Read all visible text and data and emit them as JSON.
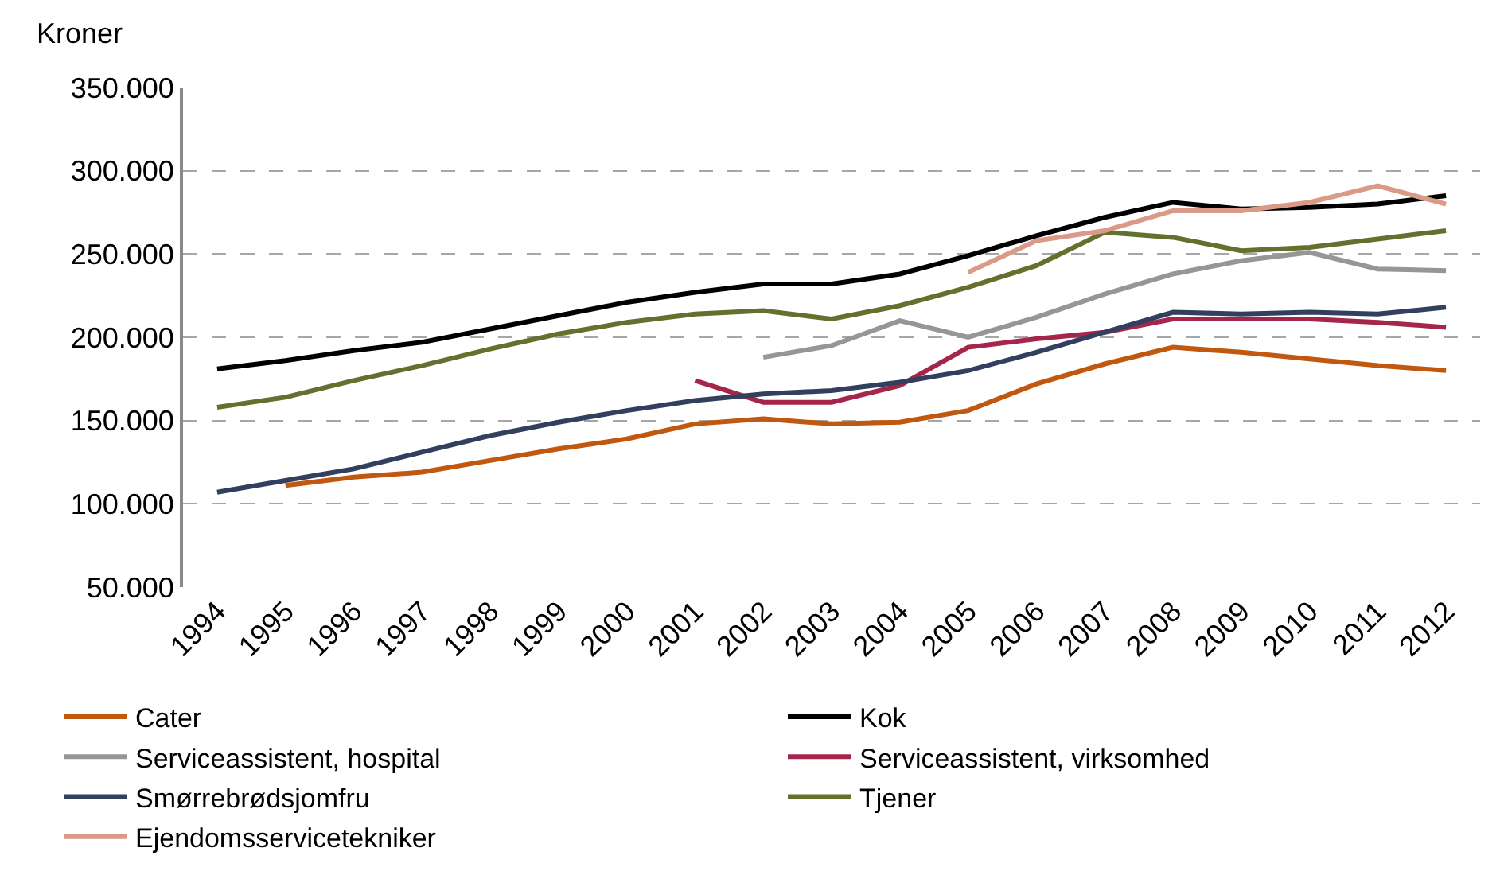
{
  "chart_data": {
    "type": "line",
    "ylabel": "Kroner",
    "categories": [
      "1994",
      "1995",
      "1996",
      "1997",
      "1998",
      "1999",
      "2000",
      "2001",
      "2002",
      "2003",
      "2004",
      "2005",
      "2006",
      "2007",
      "2008",
      "2009",
      "2010",
      "2011",
      "2012"
    ],
    "series": [
      {
        "name": "Cater",
        "color": "#c0580f",
        "values": [
          null,
          111000,
          116000,
          119000,
          126000,
          133000,
          139000,
          148000,
          151000,
          148000,
          149000,
          156000,
          172000,
          184000,
          194000,
          191000,
          187000,
          183000,
          180000
        ]
      },
      {
        "name": "Kok",
        "color": "#000000",
        "values": [
          181000,
          186000,
          192000,
          197000,
          205000,
          213000,
          221000,
          227000,
          232000,
          232000,
          238000,
          249000,
          261000,
          272000,
          281000,
          277000,
          278000,
          280000,
          285000
        ]
      },
      {
        "name": "Serviceassistent, hospital",
        "color": "#969696",
        "values": [
          null,
          null,
          null,
          null,
          null,
          null,
          null,
          null,
          188000,
          195000,
          210000,
          200000,
          212000,
          226000,
          238000,
          246000,
          251000,
          241000,
          240000
        ]
      },
      {
        "name": "Serviceassistent, virksomhed",
        "color": "#a5264a",
        "values": [
          null,
          null,
          null,
          null,
          null,
          null,
          null,
          174000,
          161000,
          161000,
          171000,
          194000,
          199000,
          203000,
          211000,
          211000,
          211000,
          209000,
          206000
        ]
      },
      {
        "name": "Smørrebrødsjomfru",
        "color": "#333f5e",
        "values": [
          107000,
          114000,
          121000,
          131000,
          141000,
          149000,
          156000,
          162000,
          166000,
          168000,
          173000,
          180000,
          191000,
          203000,
          215000,
          214000,
          215000,
          214000,
          218000
        ]
      },
      {
        "name": "Tjener",
        "color": "#62722e",
        "values": [
          158000,
          164000,
          174000,
          183000,
          193000,
          202000,
          209000,
          214000,
          216000,
          211000,
          219000,
          230000,
          243000,
          263000,
          260000,
          252000,
          254000,
          259000,
          264000
        ]
      },
      {
        "name": "Ejendomsservicetekniker",
        "color": "#d99a88",
        "values": [
          null,
          null,
          null,
          null,
          null,
          null,
          null,
          null,
          null,
          null,
          null,
          239000,
          258000,
          264000,
          276000,
          276000,
          281000,
          291000,
          280000
        ]
      }
    ],
    "ylim": [
      50000,
      350000
    ],
    "yticks": [
      {
        "value": 50000,
        "label": "50.000"
      },
      {
        "value": 100000,
        "label": "100.000"
      },
      {
        "value": 150000,
        "label": "150.000"
      },
      {
        "value": 200000,
        "label": "200.000"
      },
      {
        "value": 250000,
        "label": "250.000"
      },
      {
        "value": 300000,
        "label": "300.000"
      },
      {
        "value": 350000,
        "label": "350.000"
      }
    ],
    "grid": "y",
    "legend": "bottom",
    "line_style": "solid",
    "marker": "none"
  }
}
